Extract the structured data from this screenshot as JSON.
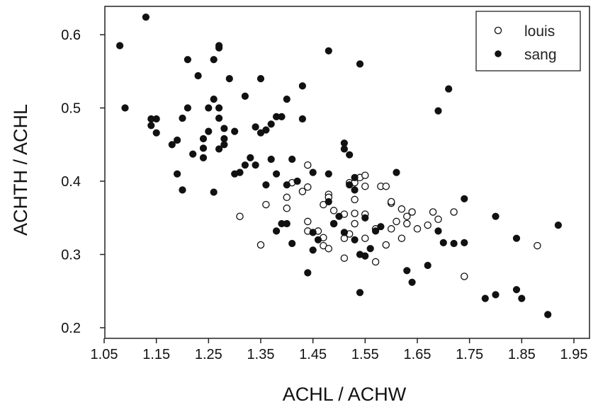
{
  "chart_data": {
    "type": "scatter",
    "xlabel": "ACHL / ACHW",
    "ylabel": "ACHTH / ACHL",
    "xlim": [
      1.05,
      1.95
    ],
    "ylim": [
      0.2,
      0.6
    ],
    "xticks": [
      "1.05",
      "1.15",
      "1.25",
      "1.35",
      "1.45",
      "1.55",
      "1.65",
      "1.75",
      "1.85",
      "1.95"
    ],
    "yticks": [
      "0.2",
      "0.3",
      "0.4",
      "0.5",
      "0.6"
    ],
    "grid": false,
    "legend_position": "top-right",
    "series": [
      {
        "name": "louis",
        "marker": "open-circle",
        "color": "#111111",
        "points": [
          [
            1.31,
            0.352
          ],
          [
            1.35,
            0.313
          ],
          [
            1.36,
            0.368
          ],
          [
            1.4,
            0.363
          ],
          [
            1.4,
            0.378
          ],
          [
            1.41,
            0.398
          ],
          [
            1.43,
            0.386
          ],
          [
            1.44,
            0.392
          ],
          [
            1.44,
            0.422
          ],
          [
            1.44,
            0.332
          ],
          [
            1.44,
            0.345
          ],
          [
            1.46,
            0.332
          ],
          [
            1.47,
            0.312
          ],
          [
            1.47,
            0.368
          ],
          [
            1.47,
            0.323
          ],
          [
            1.48,
            0.382
          ],
          [
            1.48,
            0.308
          ],
          [
            1.48,
            0.378
          ],
          [
            1.49,
            0.36
          ],
          [
            1.49,
            0.342
          ],
          [
            1.51,
            0.355
          ],
          [
            1.51,
            0.295
          ],
          [
            1.51,
            0.322
          ],
          [
            1.52,
            0.398
          ],
          [
            1.52,
            0.328
          ],
          [
            1.53,
            0.375
          ],
          [
            1.53,
            0.342
          ],
          [
            1.53,
            0.356
          ],
          [
            1.53,
            0.398
          ],
          [
            1.54,
            0.405
          ],
          [
            1.55,
            0.408
          ],
          [
            1.55,
            0.393
          ],
          [
            1.55,
            0.355
          ],
          [
            1.55,
            0.322
          ],
          [
            1.57,
            0.335
          ],
          [
            1.57,
            0.29
          ],
          [
            1.58,
            0.393
          ],
          [
            1.59,
            0.313
          ],
          [
            1.59,
            0.393
          ],
          [
            1.6,
            0.37
          ],
          [
            1.6,
            0.372
          ],
          [
            1.6,
            0.335
          ],
          [
            1.61,
            0.345
          ],
          [
            1.62,
            0.362
          ],
          [
            1.62,
            0.322
          ],
          [
            1.63,
            0.352
          ],
          [
            1.63,
            0.342
          ],
          [
            1.64,
            0.358
          ],
          [
            1.65,
            0.335
          ],
          [
            1.67,
            0.34
          ],
          [
            1.68,
            0.358
          ],
          [
            1.69,
            0.348
          ],
          [
            1.72,
            0.358
          ],
          [
            1.74,
            0.27
          ],
          [
            1.88,
            0.312
          ]
        ]
      },
      {
        "name": "sang",
        "marker": "filled-circle",
        "color": "#111111",
        "points": [
          [
            1.08,
            0.585
          ],
          [
            1.09,
            0.5
          ],
          [
            1.13,
            0.624
          ],
          [
            1.14,
            0.485
          ],
          [
            1.14,
            0.476
          ],
          [
            1.15,
            0.485
          ],
          [
            1.15,
            0.466
          ],
          [
            1.18,
            0.45
          ],
          [
            1.19,
            0.41
          ],
          [
            1.19,
            0.456
          ],
          [
            1.2,
            0.388
          ],
          [
            1.2,
            0.486
          ],
          [
            1.21,
            0.5
          ],
          [
            1.21,
            0.566
          ],
          [
            1.22,
            0.437
          ],
          [
            1.23,
            0.544
          ],
          [
            1.24,
            0.432
          ],
          [
            1.24,
            0.445
          ],
          [
            1.24,
            0.458
          ],
          [
            1.25,
            0.5
          ],
          [
            1.25,
            0.468
          ],
          [
            1.26,
            0.512
          ],
          [
            1.26,
            0.566
          ],
          [
            1.26,
            0.385
          ],
          [
            1.27,
            0.486
          ],
          [
            1.27,
            0.5
          ],
          [
            1.27,
            0.444
          ],
          [
            1.27,
            0.582
          ],
          [
            1.27,
            0.585
          ],
          [
            1.28,
            0.472
          ],
          [
            1.28,
            0.45
          ],
          [
            1.28,
            0.458
          ],
          [
            1.29,
            0.54
          ],
          [
            1.3,
            0.468
          ],
          [
            1.3,
            0.41
          ],
          [
            1.31,
            0.412
          ],
          [
            1.32,
            0.422
          ],
          [
            1.32,
            0.516
          ],
          [
            1.33,
            0.432
          ],
          [
            1.34,
            0.422
          ],
          [
            1.34,
            0.474
          ],
          [
            1.35,
            0.466
          ],
          [
            1.35,
            0.54
          ],
          [
            1.36,
            0.47
          ],
          [
            1.36,
            0.395
          ],
          [
            1.37,
            0.478
          ],
          [
            1.37,
            0.43
          ],
          [
            1.38,
            0.488
          ],
          [
            1.38,
            0.41
          ],
          [
            1.38,
            0.332
          ],
          [
            1.39,
            0.488
          ],
          [
            1.39,
            0.342
          ],
          [
            1.4,
            0.512
          ],
          [
            1.4,
            0.395
          ],
          [
            1.4,
            0.342
          ],
          [
            1.41,
            0.315
          ],
          [
            1.41,
            0.43
          ],
          [
            1.42,
            0.4
          ],
          [
            1.43,
            0.485
          ],
          [
            1.43,
            0.53
          ],
          [
            1.44,
            0.275
          ],
          [
            1.45,
            0.306
          ],
          [
            1.45,
            0.33
          ],
          [
            1.45,
            0.412
          ],
          [
            1.46,
            0.32
          ],
          [
            1.48,
            0.578
          ],
          [
            1.48,
            0.41
          ],
          [
            1.48,
            0.372
          ],
          [
            1.49,
            0.342
          ],
          [
            1.5,
            0.352
          ],
          [
            1.51,
            0.452
          ],
          [
            1.51,
            0.444
          ],
          [
            1.51,
            0.33
          ],
          [
            1.52,
            0.395
          ],
          [
            1.52,
            0.436
          ],
          [
            1.53,
            0.32
          ],
          [
            1.53,
            0.405
          ],
          [
            1.53,
            0.388
          ],
          [
            1.54,
            0.56
          ],
          [
            1.54,
            0.248
          ],
          [
            1.54,
            0.3
          ],
          [
            1.55,
            0.298
          ],
          [
            1.55,
            0.35
          ],
          [
            1.56,
            0.308
          ],
          [
            1.57,
            0.332
          ],
          [
            1.58,
            0.338
          ],
          [
            1.61,
            0.412
          ],
          [
            1.63,
            0.278
          ],
          [
            1.64,
            0.262
          ],
          [
            1.67,
            0.285
          ],
          [
            1.69,
            0.496
          ],
          [
            1.69,
            0.332
          ],
          [
            1.7,
            0.316
          ],
          [
            1.71,
            0.526
          ],
          [
            1.72,
            0.315
          ],
          [
            1.74,
            0.376
          ],
          [
            1.74,
            0.316
          ],
          [
            1.78,
            0.24
          ],
          [
            1.8,
            0.352
          ],
          [
            1.8,
            0.245
          ],
          [
            1.84,
            0.322
          ],
          [
            1.84,
            0.252
          ],
          [
            1.85,
            0.24
          ],
          [
            1.9,
            0.218
          ],
          [
            1.92,
            0.34
          ]
        ]
      }
    ]
  }
}
